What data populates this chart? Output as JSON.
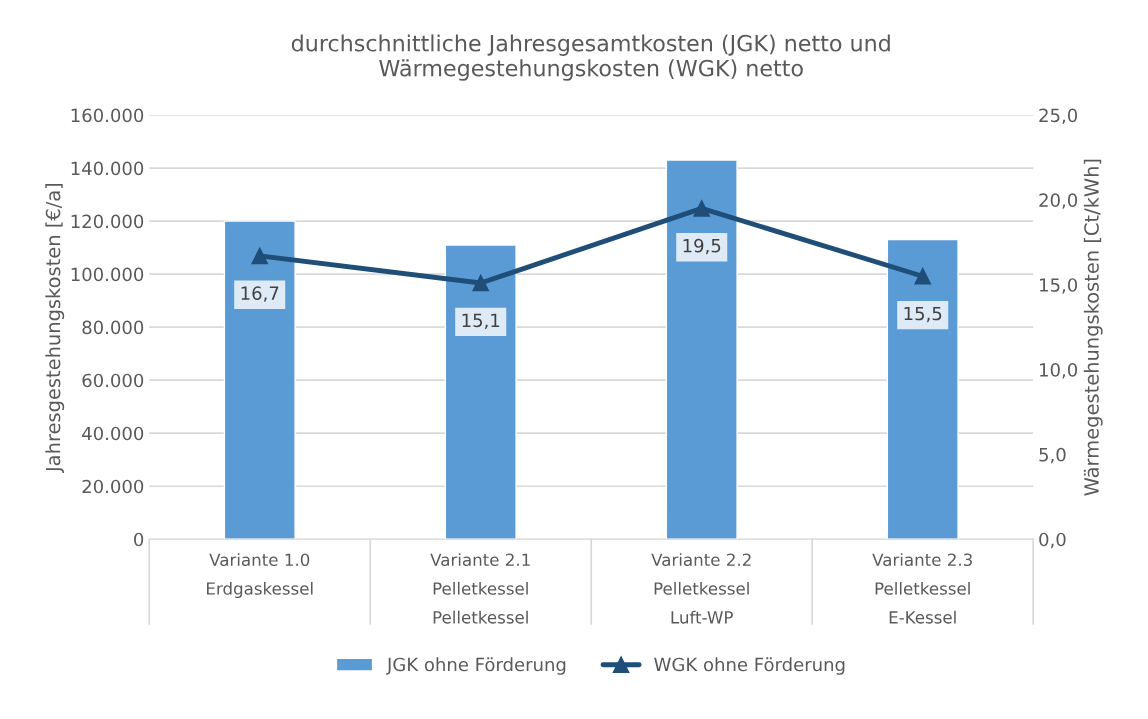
{
  "chart_data": {
    "type": "bar",
    "title": "durchschnittliche Jahresgesamtkosten (JGK) netto und\nWärmegestehungskosten (WGK) netto",
    "ylabel": "Jahresgestehungskosten [€/a]",
    "y2label": "Wärmegestehungskosten [Ct/kWh]",
    "categories": [
      "Variante 1.0\nErdgaskessel\n ",
      "Variante 2.1\nPelletkessel\nPelletkessel",
      "Variante 2.2\nPelletkessel\nLuft-WP",
      "Variante 2.3\nPelletkessel\nE-Kessel"
    ],
    "series": [
      {
        "name": "JGK ohne Förderung",
        "color": "#5b9bd5",
        "values": [
          120000,
          111000,
          143000,
          113000
        ]
      },
      {
        "name": "WGK ohne Förderung",
        "type": "line",
        "axis": "y2",
        "color": "#1f4e79",
        "marker": "triangle",
        "values": [
          16.7,
          15.1,
          19.5,
          15.5
        ],
        "value_labels": [
          "16,7",
          "15,1",
          "19,5",
          "15,5"
        ]
      }
    ],
    "ylim": [
      0,
      160000
    ],
    "yticks": [
      {
        "value": 0,
        "label": "0"
      },
      {
        "value": 20000,
        "label": "20.000"
      },
      {
        "value": 40000,
        "label": "40.000"
      },
      {
        "value": 60000,
        "label": "60.000"
      },
      {
        "value": 80000,
        "label": "80.000"
      },
      {
        "value": 100000,
        "label": "100.000"
      },
      {
        "value": 120000,
        "label": "120.000"
      },
      {
        "value": 140000,
        "label": "140.000"
      },
      {
        "value": 160000,
        "label": "160.000"
      }
    ],
    "y2lim": [
      0,
      25
    ],
    "y2ticks": [
      {
        "value": 0,
        "label": "0,0"
      },
      {
        "value": 5,
        "label": "5,0"
      },
      {
        "value": 10,
        "label": "10,0"
      },
      {
        "value": 15,
        "label": "15,0"
      },
      {
        "value": 20,
        "label": "20,0"
      },
      {
        "value": 25,
        "label": "25,0"
      }
    ],
    "grid": "y",
    "legend": "bottom"
  }
}
